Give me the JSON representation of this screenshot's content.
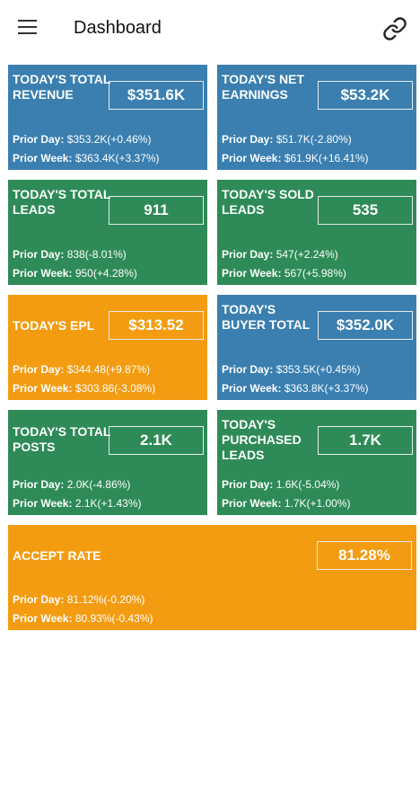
{
  "appbar": {
    "title": "Dashboard",
    "menu_icon": "hamburger-menu-icon",
    "link_icon": "link-icon"
  },
  "prior_day_label": "Prior Day:",
  "prior_week_label": "Prior Week:",
  "cards": [
    {
      "label": "TODAY'S TOTAL REVENUE",
      "value": "$351.6K",
      "prior_day": "$353.2K(+0.46%)",
      "prior_week": "$363.4K(+3.37%)",
      "color": "#3a7fb0"
    },
    {
      "label": "TODAY'S NET EARNINGS",
      "value": "$53.2K",
      "prior_day": "$51.7K(-2.80%)",
      "prior_week": "$61.9K(+16.41%)",
      "color": "#3a7fb0"
    },
    {
      "label": "TODAY'S TOTAL LEADS",
      "value": "911",
      "prior_day": "838(-8.01%)",
      "prior_week": "950(+4.28%)",
      "color": "#2e8b57"
    },
    {
      "label": "TODAY'S SOLD LEADS",
      "value": "535",
      "prior_day": "547(+2.24%)",
      "prior_week": "567(+5.98%)",
      "color": "#2e8b57"
    },
    {
      "label": "TODAY'S EPL",
      "value": "$313.52",
      "prior_day": "$344.48(+9.87%)",
      "prior_week": "$303.86(-3.08%)",
      "color": "#f39c12"
    },
    {
      "label": "TODAY'S BUYER TOTAL",
      "value": "$352.0K",
      "prior_day": "$353.5K(+0.45%)",
      "prior_week": "$363.8K(+3.37%)",
      "color": "#3a7fb0"
    },
    {
      "label": "TODAY'S TOTAL POSTS",
      "value": "2.1K",
      "prior_day": "2.0K(-4.86%)",
      "prior_week": "2.1K(+1.43%)",
      "color": "#2e8b57"
    },
    {
      "label": "TODAY'S PURCHASED LEADS",
      "value": "1.7K",
      "prior_day": "1.6K(-5.04%)",
      "prior_week": "1.7K(+1.00%)",
      "color": "#2e8b57"
    },
    {
      "label": "ACCEPT RATE",
      "value": "81.28%",
      "prior_day": "81.12%(-0.20%)",
      "prior_week": "80.93%(-0.43%)",
      "color": "#f39c12"
    }
  ]
}
